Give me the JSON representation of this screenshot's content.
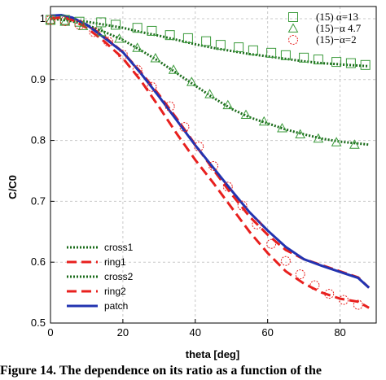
{
  "chart_data": {
    "type": "line",
    "title": "",
    "xlabel": "theta [deg]",
    "ylabel": "C/C0",
    "xlim": [
      0,
      90
    ],
    "ylim": [
      0.5,
      1.02
    ],
    "xticks": [
      0,
      20,
      40,
      60,
      80
    ],
    "yticks": [
      0.5,
      0.6,
      0.7,
      0.8,
      0.9,
      1
    ],
    "grid": true,
    "lower_legend_position": "bottom-left",
    "upper_legend_position": "top-right",
    "series": [
      {
        "name": "cross1",
        "style": "dotted",
        "color": "#1a6b1a",
        "x": [
          0,
          5,
          10,
          15,
          20,
          25,
          30,
          35,
          40,
          45,
          50,
          55,
          60,
          65,
          70,
          75,
          80,
          85,
          88
        ],
        "y": [
          1.0,
          0.998,
          0.995,
          0.99,
          0.985,
          0.978,
          0.972,
          0.965,
          0.958,
          0.952,
          0.947,
          0.942,
          0.938,
          0.934,
          0.93,
          0.927,
          0.925,
          0.923,
          0.922
        ]
      },
      {
        "name": "ring1",
        "style": "dashed",
        "color": "#e8201e",
        "x": [
          0,
          3,
          6,
          10,
          15,
          20,
          25,
          30,
          35,
          40,
          45,
          50,
          55,
          60,
          65,
          70,
          75,
          80,
          85,
          88
        ],
        "y": [
          1.0,
          1.002,
          1.0,
          0.99,
          0.97,
          0.945,
          0.912,
          0.875,
          0.835,
          0.793,
          0.752,
          0.712,
          0.675,
          0.645,
          0.62,
          0.605,
          0.595,
          0.585,
          0.575,
          0.558
        ]
      },
      {
        "name": "cross2",
        "style": "dotted",
        "color": "#1a6b1a",
        "x": [
          0,
          5,
          10,
          15,
          20,
          25,
          30,
          35,
          40,
          45,
          50,
          55,
          60,
          65,
          70,
          75,
          80,
          85,
          88
        ],
        "y": [
          1.0,
          0.997,
          0.99,
          0.978,
          0.965,
          0.948,
          0.93,
          0.91,
          0.89,
          0.87,
          0.852,
          0.838,
          0.828,
          0.818,
          0.81,
          0.803,
          0.798,
          0.795,
          0.793
        ]
      },
      {
        "name": "ring2",
        "style": "dashed",
        "color": "#e8201e",
        "x": [
          0,
          3,
          6,
          10,
          15,
          20,
          25,
          30,
          35,
          40,
          45,
          50,
          55,
          60,
          65,
          70,
          75,
          80,
          85,
          88
        ],
        "y": [
          1.0,
          1.002,
          0.998,
          0.985,
          0.962,
          0.935,
          0.898,
          0.855,
          0.81,
          0.768,
          0.73,
          0.69,
          0.65,
          0.615,
          0.585,
          0.565,
          0.55,
          0.54,
          0.535,
          0.525
        ]
      },
      {
        "name": "patch",
        "style": "solid",
        "color": "#2233b0",
        "x": [
          0,
          3,
          6,
          10,
          15,
          20,
          25,
          30,
          35,
          40,
          45,
          50,
          55,
          60,
          65,
          70,
          75,
          80,
          85,
          88
        ],
        "y": [
          1.005,
          1.006,
          1.002,
          0.99,
          0.968,
          0.945,
          0.91,
          0.872,
          0.832,
          0.792,
          0.755,
          0.718,
          0.682,
          0.652,
          0.625,
          0.605,
          0.594,
          0.584,
          0.574,
          0.558
        ]
      }
    ],
    "markers": [
      {
        "name": "(15)  α=13",
        "shape": "square",
        "color": "#3a9a3a",
        "x": [
          0,
          4,
          8,
          14,
          18,
          24,
          28,
          33,
          38,
          43,
          47,
          52,
          56,
          61,
          65,
          70,
          74,
          79,
          83,
          87
        ],
        "y": [
          0.998,
          0.998,
          0.995,
          0.994,
          0.99,
          0.985,
          0.98,
          0.973,
          0.968,
          0.963,
          0.957,
          0.953,
          0.948,
          0.944,
          0.94,
          0.936,
          0.933,
          0.929,
          0.927,
          0.924
        ]
      },
      {
        "name": "(15)−α 4.7",
        "shape": "triangle",
        "color": "#3a9a3a",
        "x": [
          0,
          4,
          9,
          14,
          19,
          24,
          29,
          34,
          39,
          44,
          49,
          54,
          59,
          64,
          69,
          74,
          79,
          84
        ],
        "y": [
          0.998,
          0.995,
          0.988,
          0.978,
          0.967,
          0.952,
          0.935,
          0.916,
          0.896,
          0.876,
          0.858,
          0.842,
          0.831,
          0.82,
          0.81,
          0.803,
          0.797,
          0.793
        ]
      },
      {
        "name": "(15)−α=2",
        "shape": "circle",
        "color": "#e8201e",
        "x": [
          0,
          4,
          8,
          12,
          16,
          20,
          24,
          28,
          33,
          37,
          41,
          45,
          49,
          53,
          57,
          61,
          65,
          69,
          73,
          77,
          81,
          85
        ],
        "y": [
          0.998,
          0.996,
          0.99,
          0.978,
          0.962,
          0.941,
          0.916,
          0.888,
          0.856,
          0.822,
          0.79,
          0.758,
          0.724,
          0.693,
          0.662,
          0.63,
          0.602,
          0.58,
          0.562,
          0.548,
          0.538,
          0.53
        ]
      }
    ]
  },
  "caption": "Figure 14.  The dependence on its ratio as a function of the"
}
